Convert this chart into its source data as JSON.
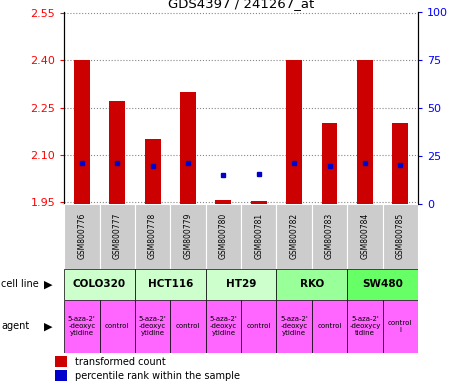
{
  "title": "GDS4397 / 241267_at",
  "samples": [
    "GSM800776",
    "GSM800777",
    "GSM800778",
    "GSM800779",
    "GSM800780",
    "GSM800781",
    "GSM800782",
    "GSM800783",
    "GSM800784",
    "GSM800785"
  ],
  "red_values": [
    2.4,
    2.27,
    2.15,
    2.3,
    1.955,
    1.952,
    2.4,
    2.2,
    2.4,
    2.2
  ],
  "blue_values": [
    2.075,
    2.075,
    2.065,
    2.075,
    2.035,
    2.038,
    2.075,
    2.065,
    2.075,
    2.068
  ],
  "ylim": [
    1.945,
    2.555
  ],
  "yticks_left": [
    1.95,
    2.1,
    2.25,
    2.4,
    2.55
  ],
  "yticks_right": [
    0,
    25,
    50,
    75,
    100
  ],
  "cell_groups": [
    {
      "name": "COLO320",
      "start": 0,
      "end": 2,
      "color": "#ccffcc"
    },
    {
      "name": "HCT116",
      "start": 2,
      "end": 4,
      "color": "#ccffcc"
    },
    {
      "name": "HT29",
      "start": 4,
      "end": 6,
      "color": "#ccffcc"
    },
    {
      "name": "RKO",
      "start": 6,
      "end": 8,
      "color": "#99ff99"
    },
    {
      "name": "SW480",
      "start": 8,
      "end": 10,
      "color": "#66ff66"
    }
  ],
  "agent_data": [
    {
      "name": "5-aza-2'\n-deoxyc\nytidine",
      "start": 0,
      "end": 1
    },
    {
      "name": "control",
      "start": 1,
      "end": 2
    },
    {
      "name": "5-aza-2'\n-deoxyc\nytidine",
      "start": 2,
      "end": 3
    },
    {
      "name": "control",
      "start": 3,
      "end": 4
    },
    {
      "name": "5-aza-2'\n-deoxyc\nytidine",
      "start": 4,
      "end": 5
    },
    {
      "name": "control",
      "start": 5,
      "end": 6
    },
    {
      "name": "5-aza-2'\n-deoxyc\nytidine",
      "start": 6,
      "end": 7
    },
    {
      "name": "control",
      "start": 7,
      "end": 8
    },
    {
      "name": "5-aza-2'\n-deoxycy\ntidine",
      "start": 8,
      "end": 9
    },
    {
      "name": "control\nl",
      "start": 9,
      "end": 10
    }
  ],
  "bar_color": "#cc0000",
  "dot_color": "#0000cc",
  "bar_bottom": 1.945,
  "grid_color": "#888888",
  "sample_box_color": "#cccccc",
  "agent_color": "#ff66ff",
  "legend_red": "transformed count",
  "legend_blue": "percentile rank within the sample"
}
